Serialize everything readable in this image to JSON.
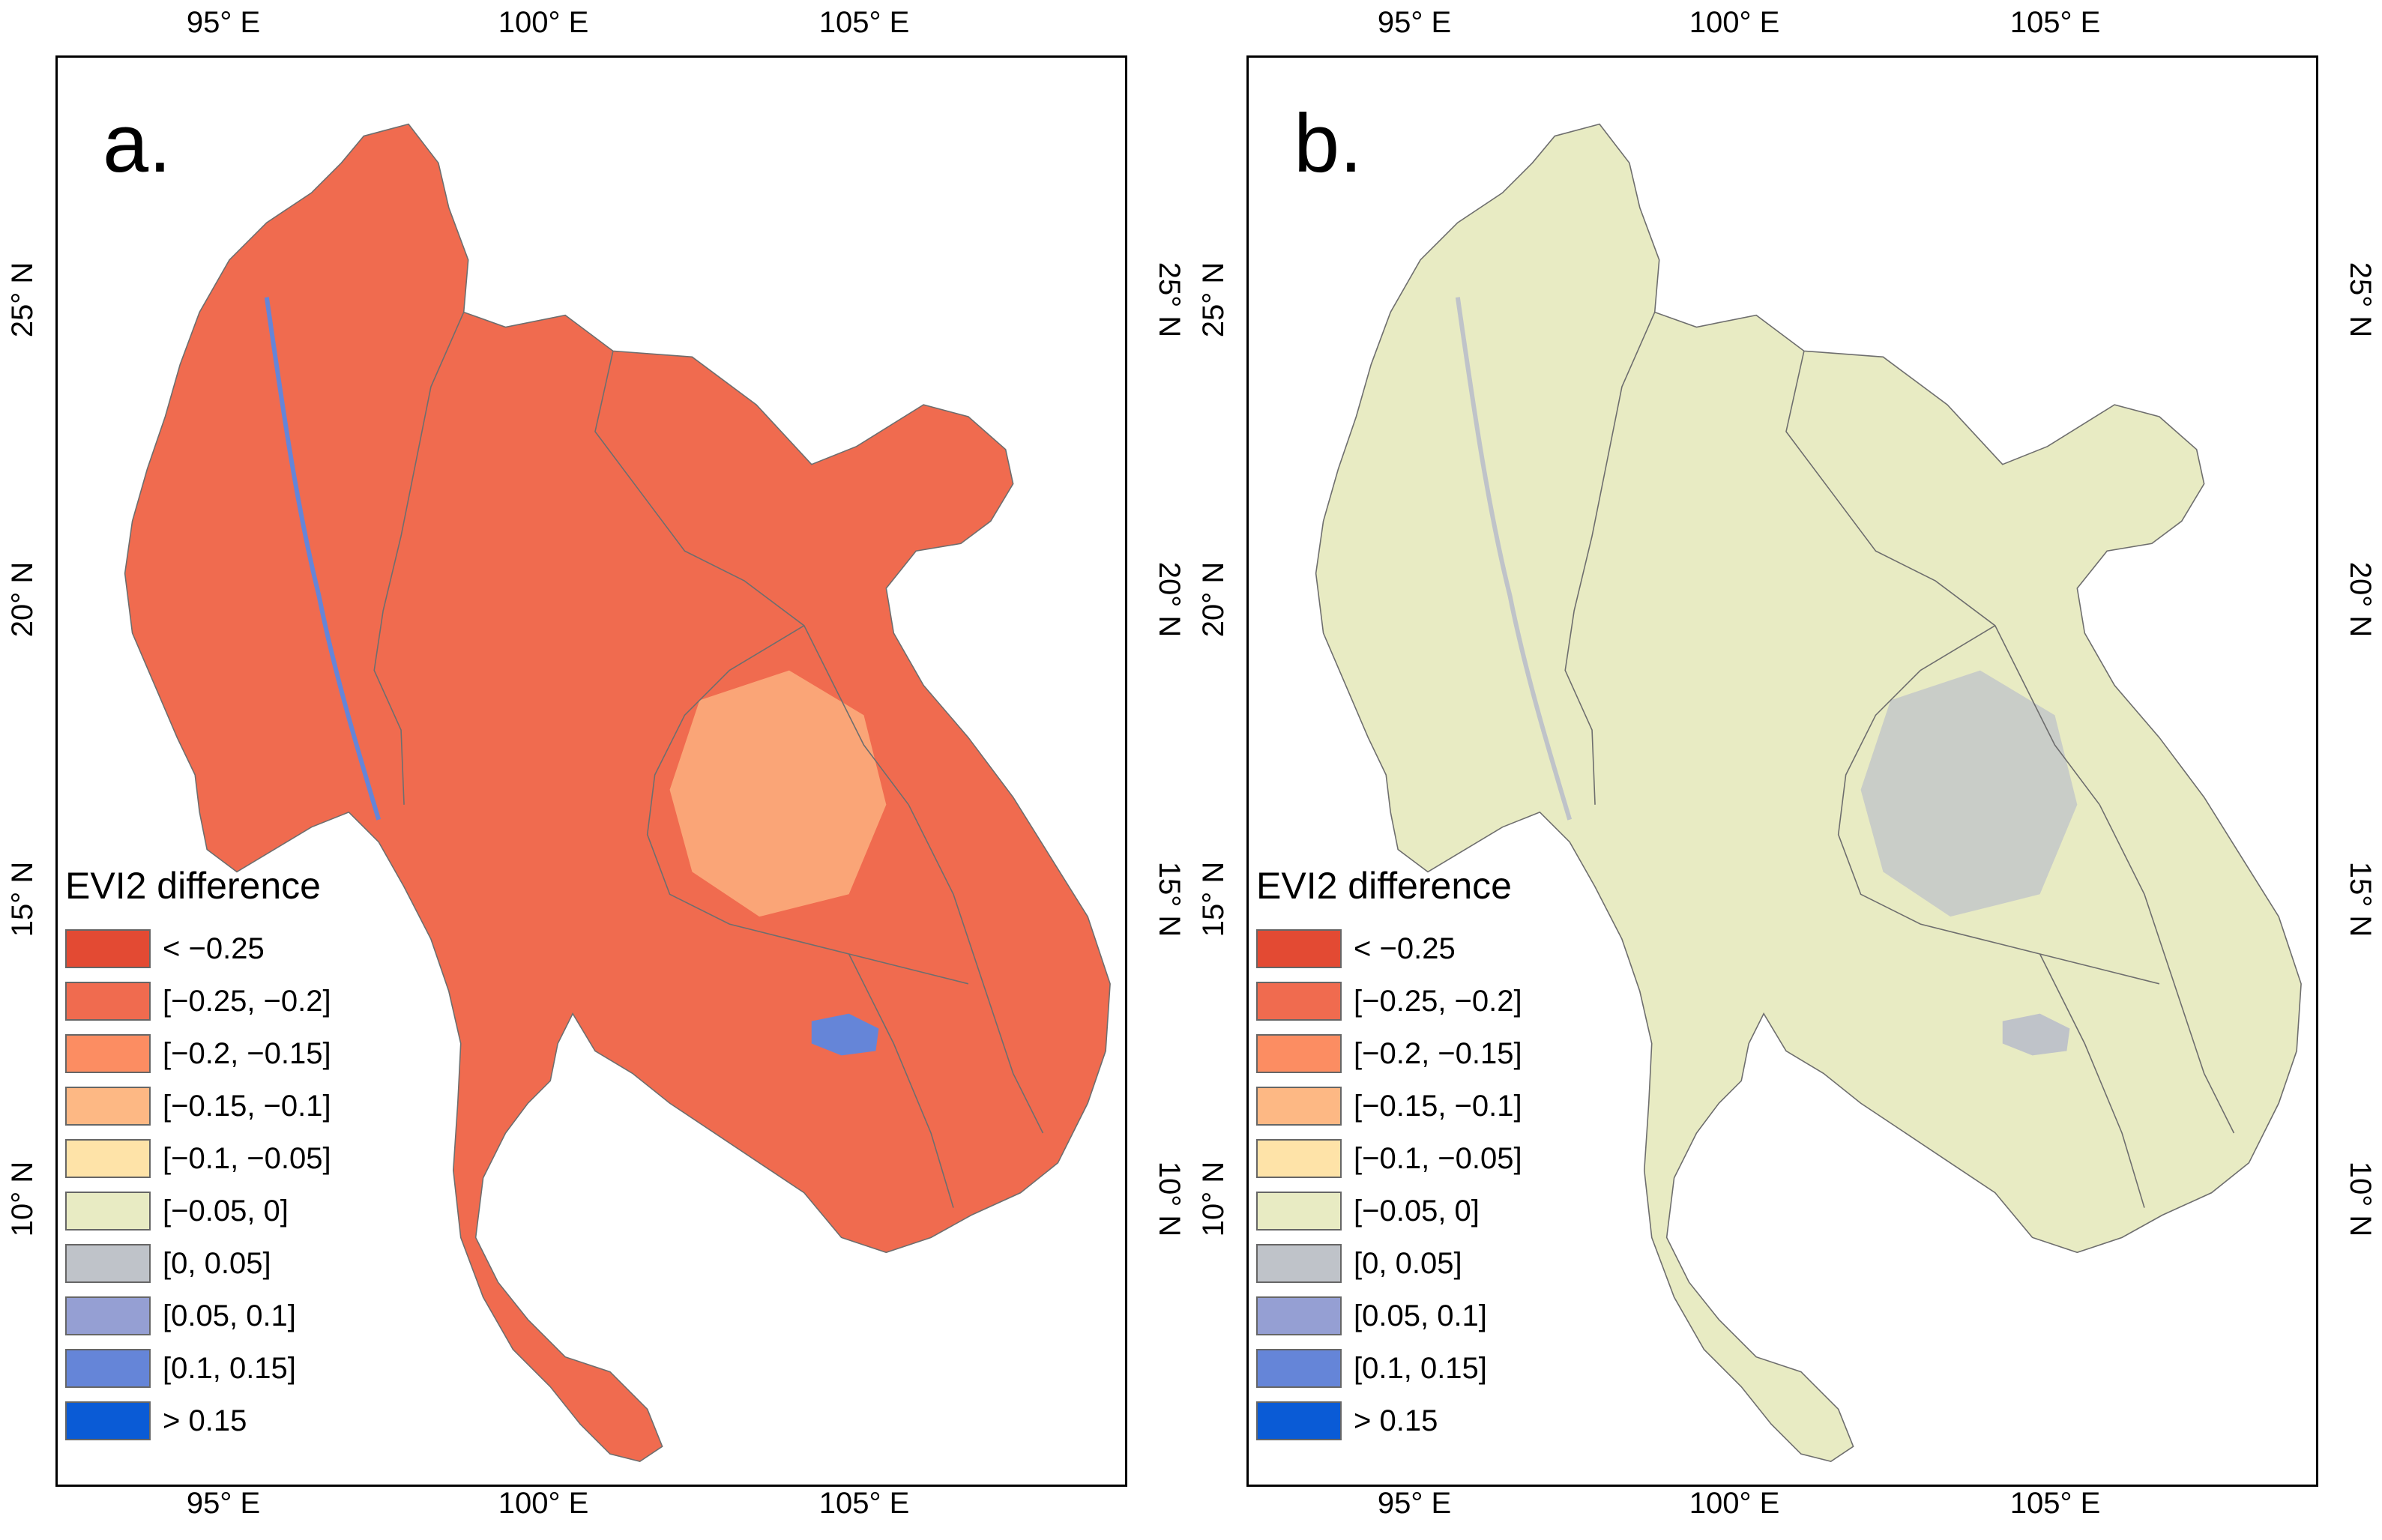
{
  "legend": {
    "title": "EVI2 difference",
    "classes": [
      {
        "label": "< −0.25",
        "color": "#e34a33"
      },
      {
        "label": "[−0.25, −0.2]",
        "color": "#f06b4f"
      },
      {
        "label": "[−0.2, −0.15]",
        "color": "#fc8d62"
      },
      {
        "label": "[−0.15, −0.1]",
        "color": "#fdb884"
      },
      {
        "label": "[−0.1, −0.05]",
        "color": "#fee3a8"
      },
      {
        "label": "[−0.05, 0]",
        "color": "#e8ebc3"
      },
      {
        "label": "[0, 0.05]",
        "color": "#bfc3c9"
      },
      {
        "label": "[0.05, 0.1]",
        "color": "#959fd3"
      },
      {
        "label": "[0.1, 0.15]",
        "color": "#6585d8"
      },
      {
        "label": "> 0.15",
        "color": "#0a5bd6"
      }
    ]
  },
  "axes": {
    "longitude_ticks": [
      "95° E",
      "100° E",
      "105° E"
    ],
    "latitude_ticks": [
      "25° N",
      "20° N",
      "15° N",
      "10° N"
    ]
  },
  "panels": [
    {
      "letter": "a.",
      "land_color": "#f06b4f",
      "accent_color": "#fdb884",
      "water_color": "#6585d8"
    },
    {
      "letter": "b.",
      "land_color": "#e8ebc3",
      "accent_color": "#bfc3c9",
      "water_color": "#bfc3c9"
    }
  ],
  "colors": {
    "border": "#6e6e6e",
    "frame": "#000000"
  }
}
